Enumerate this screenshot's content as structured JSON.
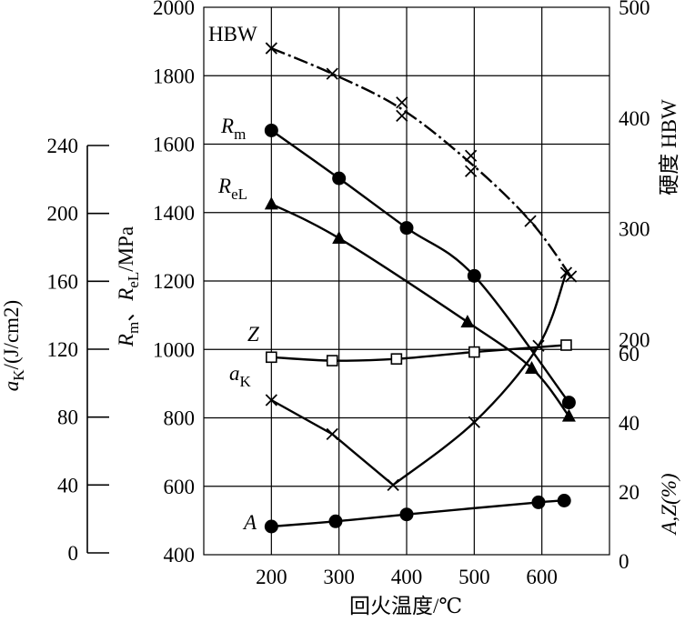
{
  "chart_data": {
    "type": "line",
    "x_axis": {
      "label": "回火温度/℃",
      "range": [
        100,
        700
      ],
      "ticks": [
        200,
        300,
        400,
        500,
        600
      ]
    },
    "axes": {
      "strength": {
        "label_parts": [
          "R",
          "m",
          "、",
          "R",
          "eL",
          "/MPa"
        ],
        "range": [
          400,
          2000
        ],
        "ticks": [
          400,
          600,
          800,
          1000,
          1200,
          1400,
          1600,
          1800,
          2000
        ]
      },
      "impact": {
        "label_parts": [
          "a",
          "K",
          "/(J/cm2)"
        ],
        "range": [
          0,
          240
        ],
        "ticks": [
          0,
          40,
          80,
          120,
          160,
          200,
          240
        ]
      },
      "hardness": {
        "label": "硬度 HBW",
        "range": [
          0,
          500
        ],
        "ticks": [
          0,
          100,
          200,
          300,
          400,
          500
        ],
        "tick_labels": [
          "0",
          "",
          "200",
          "300",
          "400",
          "500"
        ]
      },
      "elongation": {
        "label": "A,Z(%)",
        "range": [
          0,
          80
        ],
        "ticks": [
          0,
          20,
          40,
          60
        ],
        "tick_labels": [
          "0",
          "20",
          "40",
          "60"
        ]
      }
    },
    "series": [
      {
        "name": "HBW",
        "axis": "hardness",
        "marker": "x",
        "style": "dashdot",
        "points": [
          [
            200,
            463
          ],
          [
            290,
            440
          ],
          [
            393,
            414
          ],
          [
            393,
            402
          ],
          [
            495,
            366
          ],
          [
            495,
            352
          ],
          [
            583,
            307
          ],
          [
            643,
            257
          ]
        ]
      },
      {
        "name": "Rm",
        "name_parts": [
          "R",
          "m"
        ],
        "axis": "strength",
        "marker": "filled-circle",
        "style": "solid",
        "points": [
          [
            200,
            1640
          ],
          [
            300,
            1500
          ],
          [
            400,
            1355
          ],
          [
            500,
            1215
          ],
          [
            640,
            845
          ]
        ]
      },
      {
        "name": "ReL",
        "name_parts": [
          "R",
          "eL"
        ],
        "axis": "strength",
        "marker": "filled-triangle",
        "style": "solid",
        "points": [
          [
            200,
            1425
          ],
          [
            300,
            1325
          ],
          [
            490,
            1080
          ],
          [
            585,
            945
          ],
          [
            640,
            805
          ]
        ]
      },
      {
        "name": "Z",
        "axis": "elongation",
        "marker": "open-square",
        "style": "solid",
        "points": [
          [
            200,
            59
          ],
          [
            290,
            58
          ],
          [
            385,
            58.5
          ],
          [
            500,
            60.5
          ],
          [
            636,
            62.5
          ]
        ]
      },
      {
        "name": "aK",
        "name_parts": [
          "a",
          "K"
        ],
        "axis": "impact",
        "marker": "x",
        "style": "solid",
        "points": [
          [
            200,
            90
          ],
          [
            290,
            70
          ],
          [
            380,
            40
          ],
          [
            500,
            77
          ],
          [
            595,
            122
          ],
          [
            636,
            165
          ]
        ]
      },
      {
        "name": "A",
        "axis": "elongation",
        "marker": "filled-circle",
        "style": "solid",
        "points": [
          [
            200,
            10
          ],
          [
            295,
            11.5
          ],
          [
            400,
            13.5
          ],
          [
            595,
            17
          ],
          [
            633,
            17.5
          ]
        ]
      }
    ]
  }
}
